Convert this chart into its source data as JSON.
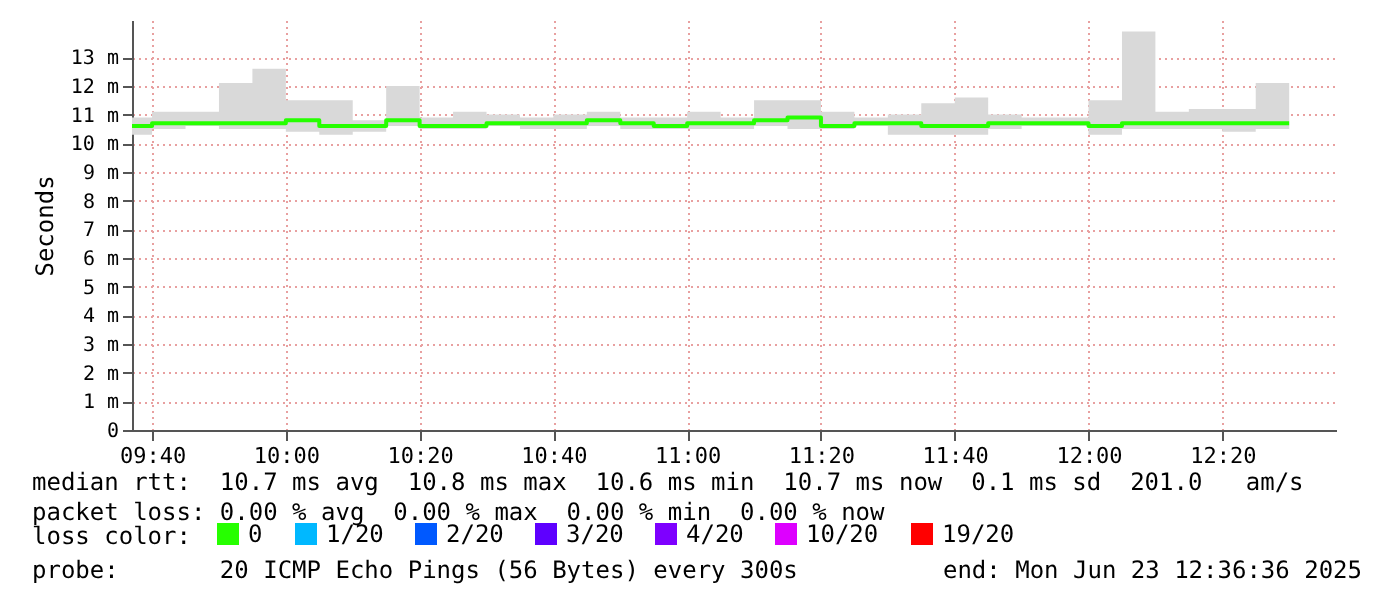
{
  "chart_data": {
    "type": "step",
    "ylabel": "Seconds",
    "x": [
      "2025-06-23T09:37",
      "2025-06-23T09:40",
      "2025-06-23T09:45",
      "2025-06-23T09:50",
      "2025-06-23T09:55",
      "2025-06-23T10:00",
      "2025-06-23T10:05",
      "2025-06-23T10:10",
      "2025-06-23T10:15",
      "2025-06-23T10:20",
      "2025-06-23T10:25",
      "2025-06-23T10:30",
      "2025-06-23T10:35",
      "2025-06-23T10:40",
      "2025-06-23T10:45",
      "2025-06-23T10:50",
      "2025-06-23T10:55",
      "2025-06-23T11:00",
      "2025-06-23T11:05",
      "2025-06-23T11:10",
      "2025-06-23T11:15",
      "2025-06-23T11:20",
      "2025-06-23T11:25",
      "2025-06-23T11:30",
      "2025-06-23T11:35",
      "2025-06-23T11:40",
      "2025-06-23T11:45",
      "2025-06-23T11:50",
      "2025-06-23T11:55",
      "2025-06-23T12:00",
      "2025-06-23T12:05",
      "2025-06-23T12:10",
      "2025-06-23T12:15",
      "2025-06-23T12:20",
      "2025-06-23T12:25",
      "2025-06-23T12:30"
    ],
    "series": [
      {
        "name": "0",
        "color": "#26ff00",
        "values": [
          10.6,
          10.7,
          10.7,
          10.7,
          10.7,
          10.8,
          10.6,
          10.6,
          10.8,
          10.6,
          10.6,
          10.7,
          10.7,
          10.7,
          10.8,
          10.7,
          10.6,
          10.7,
          10.7,
          10.8,
          10.9,
          10.6,
          10.7,
          10.7,
          10.6,
          10.6,
          10.7,
          10.7,
          10.7,
          10.6,
          10.7,
          10.7,
          10.7,
          10.7,
          10.7,
          10.7
        ],
        "lower": [
          10.3,
          10.5,
          10.6,
          10.5,
          10.5,
          10.4,
          10.3,
          10.4,
          10.6,
          10.5,
          10.5,
          10.6,
          10.5,
          10.5,
          10.6,
          10.5,
          10.5,
          10.5,
          10.5,
          10.6,
          10.5,
          10.5,
          10.6,
          10.3,
          10.3,
          10.3,
          10.5,
          10.6,
          10.6,
          10.3,
          10.5,
          10.5,
          10.5,
          10.4,
          10.5,
          10.5
        ],
        "upper": [
          10.9,
          11.1,
          11.1,
          12.1,
          12.6,
          11.5,
          11.5,
          10.8,
          12.0,
          10.9,
          11.1,
          11.0,
          10.9,
          11.0,
          11.1,
          10.9,
          10.9,
          11.1,
          10.9,
          11.5,
          11.5,
          11.1,
          10.9,
          11.0,
          11.4,
          11.6,
          11.0,
          10.9,
          10.9,
          11.5,
          13.9,
          11.1,
          11.2,
          11.2,
          12.1,
          12.1
        ]
      },
      {
        "name": "1/20",
        "color": "#00b8ff",
        "values": [
          null,
          null,
          null,
          null,
          null,
          null,
          null,
          null,
          null,
          null,
          null,
          null,
          null,
          null,
          null,
          null,
          null,
          null,
          null,
          null,
          null,
          null,
          null,
          null,
          null,
          null,
          null,
          null,
          null,
          null,
          null,
          null,
          null,
          null,
          null,
          null
        ]
      },
      {
        "name": "2/20",
        "color": "#0059ff",
        "values": [
          null,
          null,
          null,
          null,
          null,
          null,
          null,
          null,
          null,
          null,
          null,
          null,
          null,
          null,
          null,
          null,
          null,
          null,
          null,
          null,
          null,
          null,
          null,
          null,
          null,
          null,
          null,
          null,
          null,
          null,
          null,
          null,
          null,
          null,
          null,
          null
        ]
      },
      {
        "name": "3/20",
        "color": "#5e00ff",
        "values": [
          null,
          null,
          null,
          null,
          null,
          null,
          null,
          null,
          null,
          null,
          null,
          null,
          null,
          null,
          null,
          null,
          null,
          null,
          null,
          null,
          null,
          null,
          null,
          null,
          null,
          null,
          null,
          null,
          null,
          null,
          null,
          null,
          null,
          null,
          null,
          null
        ]
      },
      {
        "name": "4/20",
        "color": "#7e00ff",
        "values": [
          null,
          null,
          null,
          null,
          null,
          null,
          null,
          null,
          null,
          null,
          null,
          null,
          null,
          null,
          null,
          null,
          null,
          null,
          null,
          null,
          null,
          null,
          null,
          null,
          null,
          null,
          null,
          null,
          null,
          null,
          null,
          null,
          null,
          null,
          null,
          null
        ]
      },
      {
        "name": "10/20",
        "color": "#dd00ff",
        "values": [
          null,
          null,
          null,
          null,
          null,
          null,
          null,
          null,
          null,
          null,
          null,
          null,
          null,
          null,
          null,
          null,
          null,
          null,
          null,
          null,
          null,
          null,
          null,
          null,
          null,
          null,
          null,
          null,
          null,
          null,
          null,
          null,
          null,
          null,
          null,
          null
        ]
      },
      {
        "name": "19/20",
        "color": "#ff0000",
        "values": [
          null,
          null,
          null,
          null,
          null,
          null,
          null,
          null,
          null,
          null,
          null,
          null,
          null,
          null,
          null,
          null,
          null,
          null,
          null,
          null,
          null,
          null,
          null,
          null,
          null,
          null,
          null,
          null,
          null,
          null,
          null,
          null,
          null,
          null,
          null,
          null
        ]
      }
    ],
    "legend_title": "loss color:",
    "legend": "bottom",
    "xlim": [
      "2025-06-23T09:37",
      "2025-06-23T12:37"
    ],
    "xticks": [
      {
        "value": "2025-06-23T09:40",
        "label": "09:40"
      },
      {
        "value": "2025-06-23T10:00",
        "label": "10:00"
      },
      {
        "value": "2025-06-23T10:20",
        "label": "10:20"
      },
      {
        "value": "2025-06-23T10:40",
        "label": "10:40"
      },
      {
        "value": "2025-06-23T11:00",
        "label": "11:00"
      },
      {
        "value": "2025-06-23T11:20",
        "label": "11:20"
      },
      {
        "value": "2025-06-23T11:40",
        "label": "11:40"
      },
      {
        "value": "2025-06-23T12:00",
        "label": "12:00"
      },
      {
        "value": "2025-06-23T12:20",
        "label": "12:20"
      }
    ],
    "ylim": [
      0,
      14.3
    ],
    "yticks": [
      0,
      {
        "value": 1,
        "label": "1 m"
      },
      {
        "value": 2,
        "label": "2 m"
      },
      {
        "value": 3,
        "label": "3 m"
      },
      {
        "value": 4,
        "label": "4 m"
      },
      {
        "value": 5,
        "label": "5 m"
      },
      {
        "value": 6,
        "label": "6 m"
      },
      {
        "value": 7,
        "label": "7 m"
      },
      {
        "value": 8,
        "label": "8 m"
      },
      {
        "value": 9,
        "label": "9 m"
      },
      {
        "value": 10,
        "label": "10 m"
      },
      {
        "value": 11,
        "label": "11 m"
      },
      {
        "value": 12,
        "label": "12 m"
      },
      {
        "value": 13,
        "label": "13 m"
      }
    ],
    "grid": true,
    "annotations": [
      "median rtt:  10.7 ms avg  10.8 ms max  10.6 ms min  10.7 ms now  0.1 ms sd  201.0   am/s",
      "packet loss: 0.00 % avg  0.00 % max  0.00 % min  0.00 % now",
      "probe:       20 ICMP Echo Pings (56 Bytes) every 300s",
      "end: Mon Jun 23 12:36:36 2025"
    ]
  }
}
